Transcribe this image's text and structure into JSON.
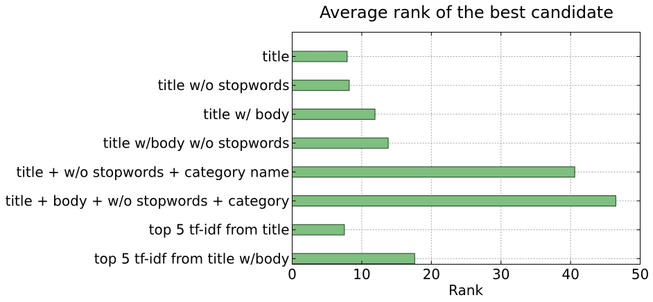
{
  "chart_data": {
    "type": "bar",
    "orientation": "horizontal",
    "title": "Average rank of the best candidate",
    "xlabel": "Rank",
    "ylabel": "",
    "xlim": [
      0,
      50
    ],
    "xticks": [
      0,
      10,
      20,
      30,
      40,
      50
    ],
    "grid": true,
    "bar_color": "#7fbf7f",
    "categories": [
      "title",
      "title w/o stopwords",
      "title w/ body",
      "title w/body w/o stopwords",
      "title + w/o stopwords + category name",
      "title + body + w/o stopwords + category",
      "top 5 tf-idf from title",
      "top 5 tf-idf from title w/body"
    ],
    "values": [
      7.9,
      8.2,
      11.9,
      13.8,
      40.6,
      46.5,
      7.5,
      17.6
    ]
  }
}
